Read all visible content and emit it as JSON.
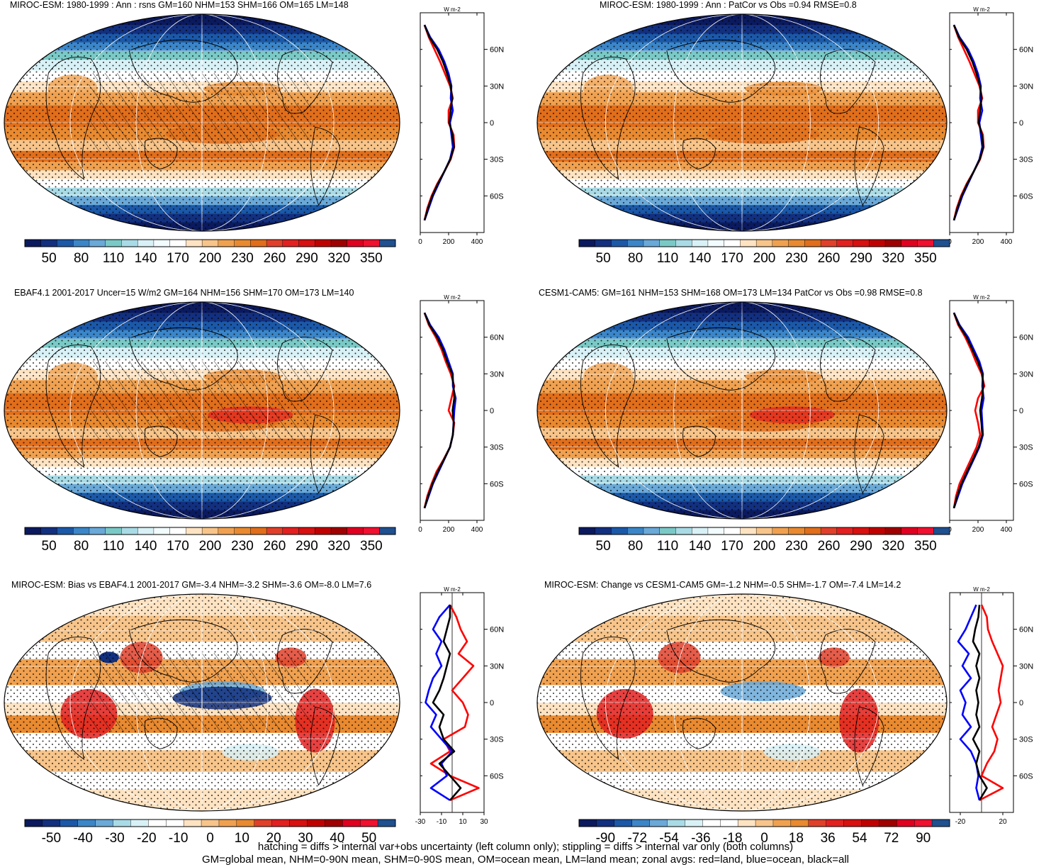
{
  "footer": {
    "line1": "hatching = diffs > internal var+obs uncertainty (left column only); stippling = diffs > internal var only (both columns)",
    "line2": "GM=global mean, NHM=0-90N mean, SHM=0-90S mean, OM=ocean mean, LM=land mean; zonal avgs: red=land, blue=ocean, black=all"
  },
  "colors": {
    "land": "#ff0000",
    "ocean": "#0000ff",
    "all": "#000000",
    "abs_palette": [
      "#0b1a5e",
      "#12307f",
      "#1b58a8",
      "#3b86c8",
      "#6aa9d8",
      "#7ac9c6",
      "#a9dbe6",
      "#d8f1f6",
      "#f2fbfd",
      "#ffffff",
      "#fde3c2",
      "#f7c48a",
      "#f0a150",
      "#e98a30",
      "#e16e1b",
      "#e0402a",
      "#e32020",
      "#d81010",
      "#c00000",
      "#a00000",
      "#e00020",
      "#f01030",
      "#1f5090"
    ],
    "diff_palette": [
      "#0b1a5e",
      "#12307f",
      "#1b58a8",
      "#3b86c8",
      "#6aa9d8",
      "#a9dbe6",
      "#d8f1f6",
      "#ffffff",
      "#ffffff",
      "#fde3c2",
      "#f7c48a",
      "#f0a150",
      "#e98a30",
      "#e0402a",
      "#e32020",
      "#d81010",
      "#c00000",
      "#a00000",
      "#e00020",
      "#f01030",
      "#1f5090"
    ]
  },
  "panels": [
    {
      "id": "miroc-abs",
      "title": "MIROC-ESM: 1980-1999 : Ann : rsns GM=160 NHM=153 SHM=166 OM=165 LM=148",
      "units": "W m-2",
      "cbar_labels": [
        "50",
        "80",
        "110",
        "140",
        "170",
        "200",
        "230",
        "260",
        "290",
        "320",
        "350"
      ],
      "palette": "abs"
    },
    {
      "id": "miroc-patcor",
      "title": "MIROC-ESM: 1980-1999 : Ann : PatCor vs Obs =0.94 RMSE=0.8",
      "units": "W m-2",
      "cbar_labels": [
        "50",
        "80",
        "110",
        "140",
        "170",
        "200",
        "230",
        "260",
        "290",
        "320",
        "350"
      ],
      "palette": "abs"
    },
    {
      "id": "ebaf-obs",
      "title": "EBAF4.1 2001-2017 Uncer=15 W/m2 GM=164 NHM=156 SHM=170 OM=173 LM=140",
      "units": "W m-2",
      "cbar_labels": [
        "50",
        "80",
        "110",
        "140",
        "170",
        "200",
        "230",
        "260",
        "290",
        "320",
        "350"
      ],
      "palette": "abs"
    },
    {
      "id": "cesm-abs",
      "title": "CESM1-CAM5: GM=161 NHM=153 SHM=168 OM=173 LM=134 PatCor vs Obs =0.98 RMSE=0.8",
      "units": "W m-2",
      "cbar_labels": [
        "50",
        "80",
        "110",
        "140",
        "170",
        "200",
        "230",
        "260",
        "290",
        "320",
        "350"
      ],
      "palette": "abs"
    },
    {
      "id": "miroc-bias",
      "title": "MIROC-ESM: Bias vs EBAF4.1 2001-2017 GM=-3.4 NHM=-3.2 SHM=-3.6 OM=-8.0 LM=7.6",
      "units": "W m-2",
      "cbar_labels": [
        "-50",
        "-40",
        "-30",
        "-20",
        "-10",
        "0",
        "10",
        "20",
        "30",
        "40",
        "50"
      ],
      "palette": "diff"
    },
    {
      "id": "miroc-change",
      "title": "MIROC-ESM: Change vs CESM1-CAM5 GM=-1.2 NHM=-0.5 SHM=-1.7 OM=-7.4 LM=14.2",
      "units": "W m-2",
      "cbar_labels": [
        "-90",
        "-72",
        "-54",
        "-36",
        "-18",
        "0",
        "18",
        "36",
        "54",
        "72",
        "90"
      ],
      "palette": "diff"
    }
  ],
  "chart_data": [
    {
      "type": "line",
      "panel": "miroc-abs",
      "xlim": [
        0,
        450
      ],
      "xticks": [
        0,
        200,
        400
      ],
      "yticks": [
        "60N",
        "30N",
        "0",
        "30S",
        "60S"
      ],
      "ytick_values": [
        60,
        30,
        0,
        -30,
        -60
      ],
      "ylim": [
        -90,
        90
      ],
      "lat": [
        80,
        70,
        60,
        50,
        40,
        30,
        20,
        10,
        0,
        -10,
        -20,
        -30,
        -40,
        -50,
        -60,
        -70,
        -80
      ],
      "series": [
        {
          "values": [
            30,
            60,
            100,
            140,
            175,
            210,
            230,
            200,
            200,
            235,
            240,
            215,
            170,
            120,
            80,
            50,
            30
          ]
        },
        {
          "values": [
            30,
            70,
            130,
            170,
            200,
            220,
            215,
            230,
            210,
            220,
            230,
            210,
            170,
            130,
            90,
            60,
            30
          ]
        },
        {
          "values": [
            30,
            65,
            120,
            160,
            190,
            215,
            225,
            215,
            205,
            228,
            238,
            212,
            170,
            125,
            85,
            55,
            30
          ]
        }
      ]
    },
    {
      "type": "line",
      "panel": "miroc-patcor",
      "xlim": [
        0,
        450
      ],
      "xticks": [
        0,
        200,
        400
      ],
      "yticks": [
        "60N",
        "30N",
        "0",
        "30S",
        "60S"
      ],
      "ytick_values": [
        60,
        30,
        0,
        -30,
        -60
      ],
      "ylim": [
        -90,
        90
      ],
      "lat": [
        80,
        70,
        60,
        50,
        40,
        30,
        20,
        10,
        0,
        -10,
        -20,
        -30,
        -40,
        -50,
        -60,
        -70,
        -80
      ],
      "series": [
        {
          "values": [
            30,
            60,
            100,
            140,
            175,
            210,
            230,
            200,
            200,
            235,
            240,
            215,
            170,
            120,
            80,
            50,
            30
          ]
        },
        {
          "values": [
            30,
            70,
            130,
            170,
            200,
            220,
            215,
            230,
            210,
            220,
            230,
            210,
            170,
            130,
            90,
            60,
            30
          ]
        },
        {
          "values": [
            30,
            65,
            120,
            160,
            190,
            215,
            225,
            215,
            205,
            228,
            238,
            212,
            170,
            125,
            85,
            55,
            30
          ]
        }
      ]
    },
    {
      "type": "line",
      "panel": "ebaf-obs",
      "xlim": [
        0,
        450
      ],
      "xticks": [
        0,
        200,
        400
      ],
      "yticks": [
        "60N",
        "30N",
        "0",
        "30S",
        "60S"
      ],
      "ytick_values": [
        60,
        30,
        0,
        -30,
        -60
      ],
      "ylim": [
        -90,
        90
      ],
      "lat": [
        80,
        70,
        60,
        50,
        40,
        30,
        20,
        10,
        0,
        -10,
        -20,
        -30,
        -40,
        -50,
        -60,
        -70,
        -80
      ],
      "series": [
        {
          "values": [
            30,
            60,
            110,
            150,
            180,
            215,
            240,
            220,
            200,
            240,
            230,
            210,
            165,
            115,
            80,
            50,
            30
          ]
        },
        {
          "values": [
            30,
            70,
            130,
            170,
            200,
            230,
            230,
            250,
            240,
            235,
            230,
            210,
            170,
            130,
            90,
            60,
            30
          ]
        },
        {
          "values": [
            30,
            65,
            120,
            160,
            190,
            225,
            235,
            240,
            228,
            236,
            230,
            210,
            168,
            124,
            86,
            56,
            30
          ]
        }
      ]
    },
    {
      "type": "line",
      "panel": "cesm-abs",
      "xlim": [
        0,
        450
      ],
      "xticks": [
        0,
        200,
        400
      ],
      "yticks": [
        "60N",
        "30N",
        "0",
        "30S",
        "60S"
      ],
      "ytick_values": [
        60,
        30,
        0,
        -30,
        -60
      ],
      "ylim": [
        -90,
        90
      ],
      "lat": [
        80,
        70,
        60,
        50,
        40,
        30,
        20,
        10,
        0,
        -10,
        -20,
        -30,
        -40,
        -50,
        -60,
        -70,
        -80
      ],
      "series": [
        {
          "values": [
            30,
            60,
            110,
            150,
            185,
            225,
            245,
            200,
            180,
            200,
            215,
            190,
            150,
            110,
            70,
            45,
            30
          ]
        },
        {
          "values": [
            30,
            70,
            130,
            170,
            210,
            235,
            230,
            240,
            225,
            230,
            235,
            210,
            170,
            130,
            90,
            60,
            30
          ]
        },
        {
          "values": [
            30,
            65,
            120,
            160,
            200,
            230,
            237,
            228,
            215,
            224,
            230,
            205,
            165,
            124,
            84,
            54,
            30
          ]
        }
      ]
    },
    {
      "type": "line",
      "panel": "miroc-bias",
      "xlim": [
        -30,
        30
      ],
      "xticks": [
        -30,
        -10,
        10,
        30
      ],
      "yticks": [
        "60N",
        "30N",
        "0",
        "30S",
        "60S"
      ],
      "ytick_values": [
        60,
        30,
        0,
        -30,
        -60
      ],
      "ylim": [
        -90,
        90
      ],
      "lat": [
        80,
        70,
        60,
        50,
        40,
        30,
        20,
        10,
        0,
        -10,
        -20,
        -30,
        -40,
        -50,
        -60,
        -70,
        -80
      ],
      "series": [
        {
          "values": [
            -2,
            4,
            8,
            14,
            6,
            20,
            10,
            0,
            10,
            15,
            12,
            -8,
            -2,
            -20,
            -2,
            25,
            -2
          ]
        },
        {
          "values": [
            -2,
            -12,
            -18,
            -10,
            -15,
            -10,
            -18,
            -22,
            -25,
            -15,
            -20,
            -10,
            0,
            -10,
            -5,
            -20,
            -2
          ]
        },
        {
          "values": [
            -2,
            -2,
            -5,
            -8,
            -2,
            -5,
            -8,
            -12,
            -18,
            -8,
            -12,
            -8,
            2,
            -12,
            -2,
            8,
            -2
          ]
        }
      ]
    },
    {
      "type": "line",
      "panel": "miroc-change",
      "xlim": [
        -30,
        30
      ],
      "xticks": [
        -20,
        20
      ],
      "yticks": [
        "60N",
        "30N",
        "0",
        "30S",
        "60S"
      ],
      "ytick_values": [
        60,
        30,
        0,
        -30,
        -60
      ],
      "ylim": [
        -90,
        90
      ],
      "lat": [
        80,
        70,
        60,
        50,
        40,
        30,
        20,
        10,
        0,
        -10,
        -20,
        -30,
        -40,
        -50,
        -60,
        -70,
        -80
      ],
      "series": [
        {
          "values": [
            0,
            5,
            6,
            10,
            15,
            20,
            18,
            16,
            18,
            14,
            10,
            15,
            12,
            5,
            0,
            20,
            -2
          ]
        },
        {
          "values": [
            -5,
            -10,
            -15,
            -22,
            -12,
            -18,
            -10,
            -20,
            -15,
            -18,
            -10,
            -20,
            -10,
            -5,
            -3,
            -5,
            -2
          ]
        },
        {
          "values": [
            -2,
            -3,
            -6,
            -8,
            -2,
            -5,
            -2,
            -5,
            -3,
            -5,
            -2,
            -8,
            -2,
            -5,
            -2,
            5,
            -2
          ]
        }
      ]
    }
  ]
}
